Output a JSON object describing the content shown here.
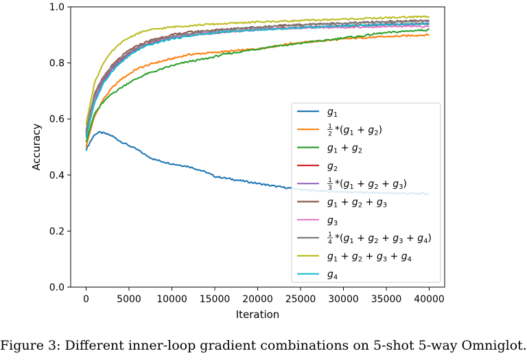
{
  "figure_caption": "Figure 3: Different inner-loop gradient combinations on 5-shot 5-way Omniglot.",
  "chart_data": {
    "type": "line",
    "title": "",
    "xlabel": "Iteration",
    "ylabel": "Accuracy",
    "xlim": [
      -1800,
      41800
    ],
    "ylim": [
      0.0,
      1.0
    ],
    "xticks": [
      0,
      5000,
      10000,
      15000,
      20000,
      25000,
      30000,
      35000,
      40000
    ],
    "xtick_labels": [
      "0",
      "5000",
      "10000",
      "15000",
      "20000",
      "25000",
      "30000",
      "35000",
      "40000"
    ],
    "yticks": [
      0.0,
      0.2,
      0.4,
      0.6,
      0.8,
      1.0
    ],
    "ytick_labels": [
      "0.0",
      "0.2",
      "0.4",
      "0.6",
      "0.8",
      "1.0"
    ],
    "grid": false,
    "legend_position": "right",
    "series": [
      {
        "name": "g₁",
        "color": "#1f77b4",
        "legend": {
          "main": "g",
          "sub1": "1"
        },
        "x": [
          0,
          500,
          1000,
          1500,
          2000,
          3000,
          4000,
          5000,
          6000,
          7000,
          8000,
          10000,
          12000,
          14000,
          15000,
          16000,
          18000,
          20000,
          22000,
          24000,
          26000,
          28000,
          30000,
          32000,
          34000,
          36000,
          38000,
          40000
        ],
        "y": [
          0.49,
          0.52,
          0.545,
          0.552,
          0.55,
          0.54,
          0.52,
          0.505,
          0.49,
          0.47,
          0.455,
          0.44,
          0.43,
          0.41,
          0.395,
          0.39,
          0.38,
          0.37,
          0.36,
          0.352,
          0.345,
          0.342,
          0.34,
          0.338,
          0.336,
          0.335,
          0.334,
          0.333
        ]
      },
      {
        "name": "1/2*(g₁+g₂)",
        "color": "#ff7f0e",
        "legend": {
          "frac": "2",
          "items": [
            "1",
            "2"
          ]
        },
        "x": [
          0,
          500,
          1000,
          2000,
          3000,
          4000,
          5000,
          6000,
          7000,
          8000,
          10000,
          12000,
          14000,
          16000,
          18000,
          20000,
          22000,
          24000,
          26000,
          28000,
          30000,
          32000,
          34000,
          36000,
          38000,
          40000
        ],
        "y": [
          0.5,
          0.56,
          0.61,
          0.67,
          0.71,
          0.74,
          0.76,
          0.78,
          0.79,
          0.8,
          0.815,
          0.83,
          0.835,
          0.84,
          0.845,
          0.85,
          0.86,
          0.87,
          0.875,
          0.88,
          0.885,
          0.89,
          0.892,
          0.895,
          0.898,
          0.9
        ]
      },
      {
        "name": "g₁+g₂",
        "color": "#2ca02c",
        "legend": {
          "items": [
            "1",
            "2"
          ]
        },
        "x": [
          0,
          500,
          1000,
          2000,
          3000,
          4000,
          5000,
          6000,
          7000,
          8000,
          10000,
          12000,
          14000,
          16000,
          18000,
          20000,
          22000,
          24000,
          26000,
          28000,
          30000,
          32000,
          34000,
          36000,
          38000,
          40000
        ],
        "y": [
          0.52,
          0.57,
          0.62,
          0.66,
          0.69,
          0.71,
          0.73,
          0.745,
          0.76,
          0.77,
          0.79,
          0.805,
          0.815,
          0.83,
          0.84,
          0.85,
          0.86,
          0.865,
          0.875,
          0.88,
          0.89,
          0.895,
          0.905,
          0.91,
          0.915,
          0.918
        ]
      },
      {
        "name": "g₂",
        "color": "#d62728",
        "legend": {
          "main": "g",
          "sub1": "2"
        },
        "x": [
          0,
          500,
          1000,
          2000,
          3000,
          4000,
          5000,
          6000,
          7000,
          8000,
          10000,
          12000,
          14000,
          16000,
          18000,
          20000,
          22000,
          24000,
          26000,
          28000,
          30000,
          32000,
          34000,
          36000,
          38000,
          40000
        ],
        "y": [
          0.55,
          0.62,
          0.68,
          0.74,
          0.78,
          0.81,
          0.835,
          0.85,
          0.865,
          0.875,
          0.89,
          0.9,
          0.905,
          0.91,
          0.915,
          0.92,
          0.922,
          0.925,
          0.928,
          0.93,
          0.932,
          0.934,
          0.936,
          0.938,
          0.94,
          0.94
        ]
      },
      {
        "name": "1/3*(g₁+g₂+g₃)",
        "color": "#9467bd",
        "legend": {
          "frac": "3",
          "items": [
            "1",
            "2",
            "3"
          ]
        },
        "x": [
          0,
          500,
          1000,
          2000,
          3000,
          4000,
          5000,
          6000,
          7000,
          8000,
          10000,
          12000,
          14000,
          16000,
          18000,
          20000,
          22000,
          24000,
          26000,
          28000,
          30000,
          32000,
          34000,
          36000,
          38000,
          40000
        ],
        "y": [
          0.54,
          0.61,
          0.67,
          0.735,
          0.775,
          0.805,
          0.83,
          0.848,
          0.862,
          0.873,
          0.888,
          0.898,
          0.904,
          0.91,
          0.915,
          0.918,
          0.921,
          0.924,
          0.927,
          0.93,
          0.932,
          0.934,
          0.936,
          0.937,
          0.938,
          0.94
        ]
      },
      {
        "name": "g₁+g₂+g₃",
        "color": "#8c564b",
        "legend": {
          "items": [
            "1",
            "2",
            "3"
          ]
        },
        "x": [
          0,
          500,
          1000,
          2000,
          3000,
          4000,
          5000,
          6000,
          7000,
          8000,
          10000,
          12000,
          14000,
          16000,
          18000,
          20000,
          22000,
          24000,
          26000,
          28000,
          30000,
          32000,
          34000,
          36000,
          38000,
          40000
        ],
        "y": [
          0.56,
          0.63,
          0.69,
          0.75,
          0.79,
          0.82,
          0.845,
          0.862,
          0.875,
          0.885,
          0.9,
          0.91,
          0.915,
          0.92,
          0.925,
          0.928,
          0.932,
          0.935,
          0.938,
          0.94,
          0.942,
          0.944,
          0.946,
          0.948,
          0.95,
          0.95
        ]
      },
      {
        "name": "g₃",
        "color": "#e377c2",
        "legend": {
          "main": "g",
          "sub1": "3"
        },
        "x": [
          0,
          500,
          1000,
          2000,
          3000,
          4000,
          5000,
          6000,
          7000,
          8000,
          10000,
          12000,
          14000,
          16000,
          18000,
          20000,
          22000,
          24000,
          26000,
          28000,
          30000,
          32000,
          34000,
          36000,
          38000,
          40000
        ],
        "y": [
          0.54,
          0.62,
          0.68,
          0.745,
          0.785,
          0.815,
          0.838,
          0.855,
          0.868,
          0.878,
          0.893,
          0.902,
          0.908,
          0.912,
          0.916,
          0.92,
          0.922,
          0.924,
          0.925,
          0.926,
          0.927,
          0.928,
          0.929,
          0.93,
          0.93,
          0.93
        ]
      },
      {
        "name": "1/4*(g₁+g₂+g₃+g₄)",
        "color": "#7f7f7f",
        "legend": {
          "frac": "4",
          "items": [
            "1",
            "2",
            "3",
            "4"
          ]
        },
        "x": [
          0,
          500,
          1000,
          2000,
          3000,
          4000,
          5000,
          6000,
          7000,
          8000,
          10000,
          12000,
          14000,
          16000,
          18000,
          20000,
          22000,
          24000,
          26000,
          28000,
          30000,
          32000,
          34000,
          36000,
          38000,
          40000
        ],
        "y": [
          0.55,
          0.625,
          0.685,
          0.745,
          0.785,
          0.815,
          0.838,
          0.856,
          0.87,
          0.88,
          0.895,
          0.905,
          0.912,
          0.918,
          0.922,
          0.926,
          0.93,
          0.933,
          0.936,
          0.939,
          0.941,
          0.943,
          0.945,
          0.947,
          0.948,
          0.95
        ]
      },
      {
        "name": "g₁+g₂+g₃+g₄",
        "color": "#bcbd22",
        "legend": {
          "items": [
            "1",
            "2",
            "3",
            "4"
          ]
        },
        "x": [
          0,
          500,
          1000,
          2000,
          3000,
          4000,
          5000,
          6000,
          7000,
          8000,
          10000,
          12000,
          14000,
          16000,
          18000,
          20000,
          22000,
          24000,
          26000,
          28000,
          30000,
          32000,
          34000,
          36000,
          38000,
          40000
        ],
        "y": [
          0.58,
          0.66,
          0.73,
          0.8,
          0.84,
          0.87,
          0.89,
          0.905,
          0.915,
          0.92,
          0.928,
          0.933,
          0.937,
          0.94,
          0.943,
          0.946,
          0.948,
          0.95,
          0.952,
          0.954,
          0.956,
          0.958,
          0.96,
          0.962,
          0.964,
          0.965
        ]
      },
      {
        "name": "g₄",
        "color": "#17becf",
        "legend": {
          "main": "g",
          "sub1": "4"
        },
        "x": [
          0,
          500,
          1000,
          2000,
          3000,
          4000,
          5000,
          6000,
          7000,
          8000,
          10000,
          12000,
          14000,
          16000,
          18000,
          20000,
          22000,
          24000,
          26000,
          28000,
          30000,
          32000,
          34000,
          36000,
          38000,
          40000
        ],
        "y": [
          0.53,
          0.6,
          0.66,
          0.725,
          0.77,
          0.8,
          0.825,
          0.845,
          0.86,
          0.87,
          0.886,
          0.896,
          0.904,
          0.91,
          0.914,
          0.918,
          0.921,
          0.924,
          0.927,
          0.93,
          0.932,
          0.934,
          0.936,
          0.937,
          0.938,
          0.938
        ]
      }
    ]
  }
}
